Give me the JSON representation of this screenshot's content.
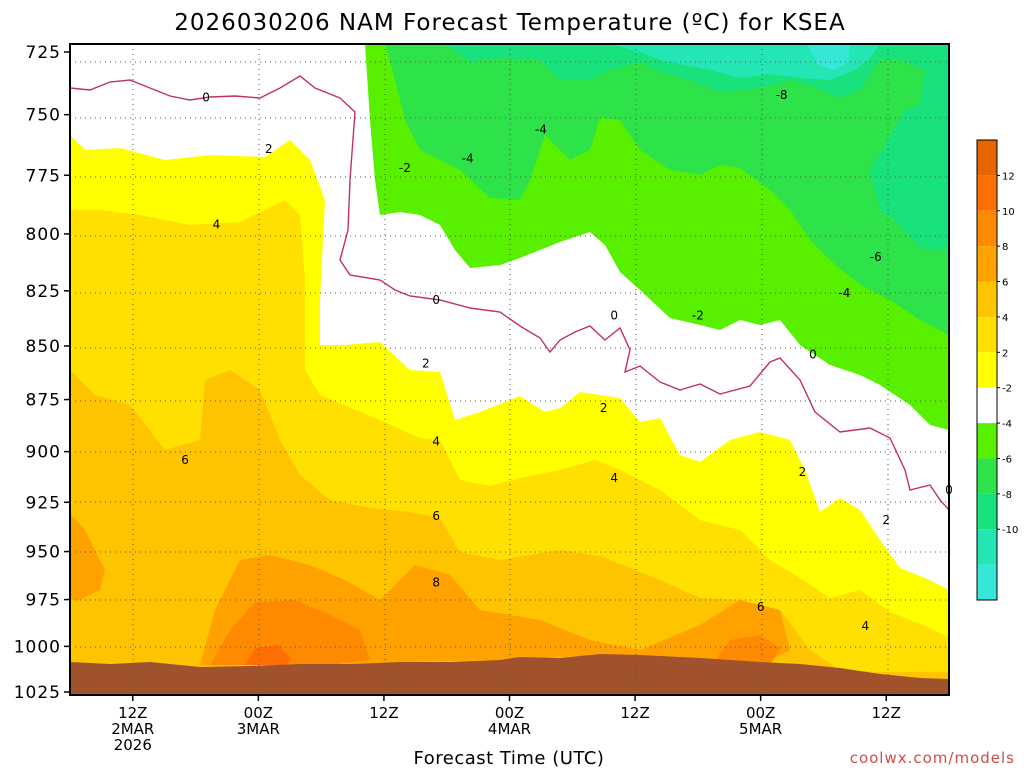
{
  "chart_data": {
    "type": "contour",
    "title": "2026030206 NAM Forecast Temperature (ºC) for KSEA",
    "xlabel": "Forecast Time (UTC)",
    "ylabel": "",
    "credit": "coolwx.com/models",
    "y_axis": {
      "unit": "hPa",
      "range": [
        725,
        1025
      ],
      "scale": "log",
      "ticks": [
        725,
        750,
        775,
        800,
        825,
        850,
        875,
        900,
        925,
        950,
        975,
        1000,
        1025
      ],
      "tick_labels": [
        "725",
        "750",
        "775",
        "800",
        "825",
        "850",
        "875",
        "900",
        "925",
        "950",
        "975",
        "1000",
        "1025"
      ]
    },
    "x_axis": {
      "unit": "forecast hour",
      "range": [
        6,
        90
      ],
      "ticks": [
        {
          "hour": 12,
          "lines": [
            "12Z",
            "2MAR",
            "2026"
          ]
        },
        {
          "hour": 24,
          "lines": [
            "00Z",
            "3MAR"
          ]
        },
        {
          "hour": 36,
          "lines": [
            "12Z"
          ]
        },
        {
          "hour": 48,
          "lines": [
            "00Z",
            "4MAR"
          ]
        },
        {
          "hour": 60,
          "lines": [
            "12Z"
          ]
        },
        {
          "hour": 72,
          "lines": [
            "00Z",
            "5MAR"
          ]
        },
        {
          "hour": 84,
          "lines": [
            "12Z"
          ]
        }
      ]
    },
    "grid": true,
    "colorbar": {
      "placement": "right",
      "levels": [
        -12,
        -10,
        -8,
        -6,
        -4,
        -2,
        2,
        4,
        6,
        8,
        10,
        12,
        14
      ],
      "labels": [
        "12",
        "10",
        "8",
        "6",
        "4",
        "2",
        "-2",
        "-4",
        "-6",
        "-8",
        "-10"
      ],
      "colors": [
        "#36e6d6",
        "#24e6b4",
        "#19e27c",
        "#2ee24a",
        "#58f000",
        "#ffffff",
        "#ffff00",
        "#ffe000",
        "#ffc400",
        "#ffa200",
        "#ff8a00",
        "#ff6e00",
        "#e86400"
      ]
    },
    "contour_labels": [
      {
        "text": "0",
        "hour": 19,
        "p": 743
      },
      {
        "text": "2",
        "hour": 25,
        "p": 764
      },
      {
        "text": "4",
        "hour": 20,
        "p": 796
      },
      {
        "text": "6",
        "hour": 17,
        "p": 904
      },
      {
        "text": "-2",
        "hour": 38,
        "p": 772
      },
      {
        "text": "-4",
        "hour": 44,
        "p": 768
      },
      {
        "text": "-4",
        "hour": 51,
        "p": 756
      },
      {
        "text": "-8",
        "hour": 74,
        "p": 742
      },
      {
        "text": "-6",
        "hour": 83,
        "p": 810
      },
      {
        "text": "-4",
        "hour": 80,
        "p": 826
      },
      {
        "text": "-2",
        "hour": 66,
        "p": 836
      },
      {
        "text": "0",
        "hour": 41,
        "p": 829
      },
      {
        "text": "0",
        "hour": 58,
        "p": 836
      },
      {
        "text": "0",
        "hour": 77,
        "p": 854
      },
      {
        "text": "0",
        "hour": 90,
        "p": 919
      },
      {
        "text": "2",
        "hour": 40,
        "p": 858
      },
      {
        "text": "2",
        "hour": 57,
        "p": 879
      },
      {
        "text": "2",
        "hour": 76,
        "p": 910
      },
      {
        "text": "2",
        "hour": 84,
        "p": 934
      },
      {
        "text": "4",
        "hour": 41,
        "p": 895
      },
      {
        "text": "4",
        "hour": 58,
        "p": 913
      },
      {
        "text": "4",
        "hour": 82,
        "p": 989
      },
      {
        "text": "6",
        "hour": 41,
        "p": 932
      },
      {
        "text": "6",
        "hour": 72,
        "p": 979
      },
      {
        "text": "8",
        "hour": 41,
        "p": 966
      }
    ]
  }
}
